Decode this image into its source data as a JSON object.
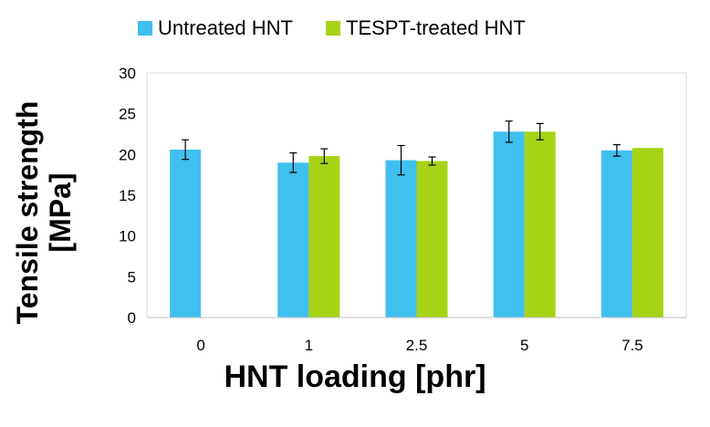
{
  "chart_data": {
    "type": "bar",
    "categories": [
      "0",
      "1",
      "2.5",
      "5",
      "7.5"
    ],
    "series": [
      {
        "name": "Untreated HNT",
        "values": [
          20.6,
          19.0,
          19.3,
          22.8,
          20.5
        ],
        "errors": [
          1.2,
          1.2,
          1.8,
          1.3,
          0.7
        ],
        "color": "#3fc0ef"
      },
      {
        "name": "TESPT-treated HNT",
        "values": [
          null,
          19.8,
          19.2,
          22.8,
          20.8
        ],
        "errors": [
          null,
          0.9,
          0.5,
          1.0,
          null
        ],
        "color": "#a6d316"
      }
    ],
    "xlabel": "HNT loading [phr]",
    "ylabel": "Tensile strength\n[MPa]",
    "ylim": [
      0,
      30
    ],
    "yticks": [
      0,
      5,
      10,
      15,
      20,
      25,
      30
    ],
    "grid": false,
    "legend": "top"
  }
}
